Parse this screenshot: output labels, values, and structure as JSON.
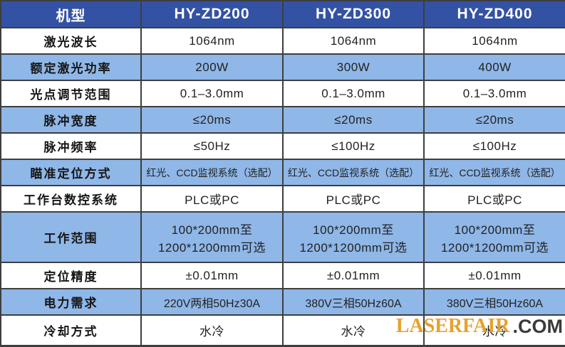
{
  "table": {
    "header": {
      "corner": "机型",
      "models": [
        "HY-ZD200",
        "HY-ZD300",
        "HY-ZD400"
      ]
    },
    "rows": [
      {
        "label": "激光波长",
        "values": [
          "1064nm",
          "1064nm",
          "1064nm"
        ]
      },
      {
        "label": "额定激光功率",
        "values": [
          "200W",
          "300W",
          "400W"
        ]
      },
      {
        "label": "光点调节范围",
        "values": [
          "0.1–3.0mm",
          "0.1–3.0mm",
          "0.1–3.0mm"
        ]
      },
      {
        "label": "脉冲宽度",
        "values": [
          "≤20ms",
          "≤20ms",
          "≤20ms"
        ]
      },
      {
        "label": "脉冲频率",
        "values": [
          "≤50Hz",
          "≤100Hz",
          "≤100Hz"
        ]
      },
      {
        "label": "瞄准定位方式",
        "values": [
          "红光、CCD监视系统（选配）",
          "红光、CCD监视系统（选配）",
          "红光、CCD监视系统（选配）"
        ]
      },
      {
        "label": "工作台数控系统",
        "values": [
          "PLC或PC",
          "PLC或PC",
          "PLC或PC"
        ]
      },
      {
        "label": "工作范围",
        "values": [
          "100*200mm至\n1200*1200mm可选",
          "100*200mm至\n1200*1200mm可选",
          "100*200mm至\n1200*1200mm可选"
        ]
      },
      {
        "label": "定位精度",
        "values": [
          "±0.01mm",
          "±0.01mm",
          "±0.01mm"
        ]
      },
      {
        "label": "电力需求",
        "values": [
          "220V两相50Hz30A",
          "380V三相50Hz60A",
          "380V三相50Hz60A"
        ]
      },
      {
        "label": "冷却方式",
        "values": [
          "水冷",
          "水冷",
          "水冷"
        ]
      }
    ]
  },
  "watermark": {
    "brand": "LASERFAIR",
    "suffix": ".COM",
    "brand_color": "#e8a12c",
    "suffix_color": "#3a3a3a"
  },
  "colors": {
    "header_bg": "#3452a3",
    "row_blue": "#8fb7e8",
    "row_white": "#ffffff",
    "border": "#3e3e3e",
    "header_text": "#ffffff",
    "body_text": "#222222"
  }
}
